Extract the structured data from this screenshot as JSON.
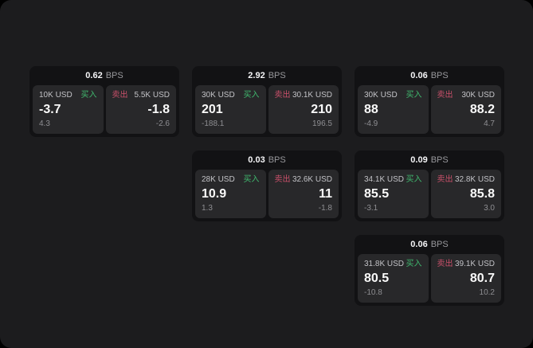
{
  "labels": {
    "bps_unit": "BPS",
    "buy": "买入",
    "sell": "卖出"
  },
  "colors": {
    "buy": "#40b96e",
    "sell": "#c9506a",
    "page_bg": "#1c1c1e",
    "card_bg": "#121214",
    "panel_bg": "#28282a"
  },
  "cards": [
    {
      "grid": {
        "col": 1,
        "row": 1
      },
      "bps": "0.62",
      "buy": {
        "amount": "10K USD",
        "price": "-3.7",
        "change": "4.3"
      },
      "sell": {
        "amount": "5.5K USD",
        "price": "-1.8",
        "change": "-2.6"
      }
    },
    {
      "grid": {
        "col": 2,
        "row": 1
      },
      "bps": "2.92",
      "buy": {
        "amount": "30K USD",
        "price": "201",
        "change": "-188.1"
      },
      "sell": {
        "amount": "30.1K USD",
        "price": "210",
        "change": "196.5"
      }
    },
    {
      "grid": {
        "col": 3,
        "row": 1
      },
      "bps": "0.06",
      "buy": {
        "amount": "30K USD",
        "price": "88",
        "change": "-4.9"
      },
      "sell": {
        "amount": "30K USD",
        "price": "88.2",
        "change": "4.7"
      }
    },
    {
      "grid": {
        "col": 2,
        "row": 2
      },
      "bps": "0.03",
      "buy": {
        "amount": "28K USD",
        "price": "10.9",
        "change": "1.3"
      },
      "sell": {
        "amount": "32.6K USD",
        "price": "11",
        "change": "-1.8"
      }
    },
    {
      "grid": {
        "col": 3,
        "row": 2
      },
      "bps": "0.09",
      "buy": {
        "amount": "34.1K USD",
        "price": "85.5",
        "change": "-3.1"
      },
      "sell": {
        "amount": "32.8K USD",
        "price": "85.8",
        "change": "3.0"
      }
    },
    {
      "grid": {
        "col": 3,
        "row": 3
      },
      "bps": "0.06",
      "buy": {
        "amount": "31.8K USD",
        "price": "80.5",
        "change": "-10.8"
      },
      "sell": {
        "amount": "39.1K USD",
        "price": "80.7",
        "change": "10.2"
      }
    }
  ]
}
